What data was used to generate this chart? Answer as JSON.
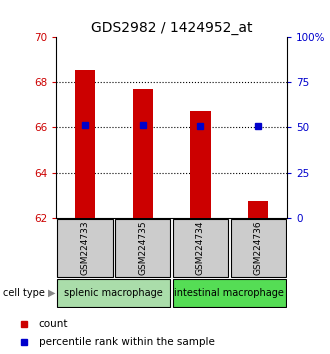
{
  "title": "GDS2982 / 1424952_at",
  "samples": [
    "GSM224733",
    "GSM224735",
    "GSM224734",
    "GSM224736"
  ],
  "count_values": [
    68.55,
    67.72,
    66.72,
    62.72
  ],
  "percentile_values": [
    66.1,
    66.1,
    66.05,
    66.05
  ],
  "count_baseline": 62.0,
  "ylim_left": [
    62,
    70
  ],
  "ylim_right": [
    0,
    100
  ],
  "yticks_left": [
    62,
    64,
    66,
    68,
    70
  ],
  "yticks_right": [
    0,
    25,
    50,
    75,
    100
  ],
  "ytick_labels_right": [
    "0",
    "25",
    "50",
    "75",
    "100%"
  ],
  "grid_lines": [
    64,
    66,
    68
  ],
  "bar_color": "#cc0000",
  "percentile_color": "#0000cc",
  "bar_width": 0.35,
  "groups": [
    {
      "label": "splenic macrophage",
      "indices": [
        0,
        1
      ],
      "color": "#aaddaa"
    },
    {
      "label": "intestinal macrophage",
      "indices": [
        2,
        3
      ],
      "color": "#55dd55"
    }
  ],
  "sample_box_color": "#cccccc",
  "cell_type_label": "cell type",
  "arrow_char": "▶",
  "legend_count_label": "count",
  "legend_percentile_label": "percentile rank within the sample",
  "left_axis_color": "#cc0000",
  "right_axis_color": "#0000cc",
  "title_fontsize": 10,
  "tick_fontsize": 7.5,
  "sample_fontsize": 6.5,
  "group_fontsize": 7,
  "legend_fontsize": 7.5
}
